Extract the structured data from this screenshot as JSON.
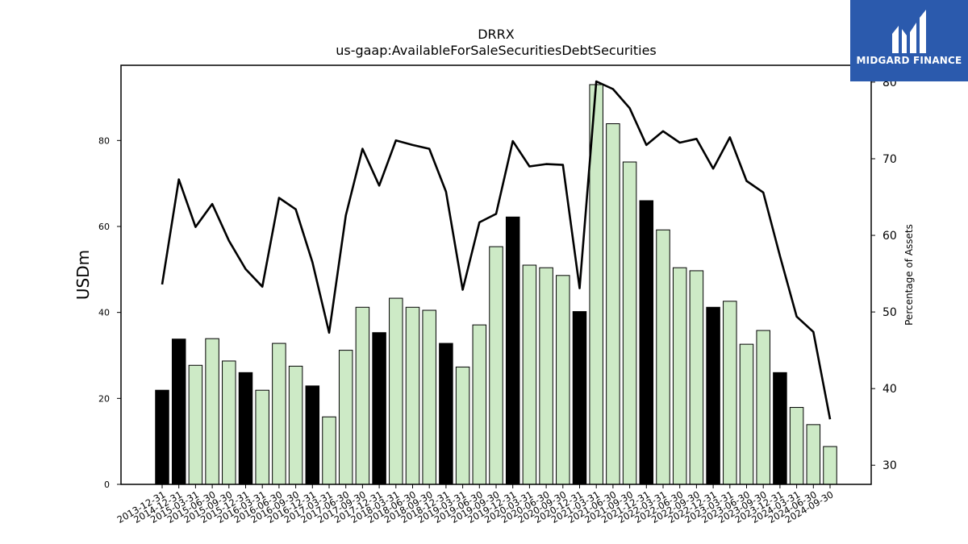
{
  "chart_data": {
    "type": "bar",
    "title": "DRRX",
    "subtitle": "us-gaap:AvailableForSaleSecuritiesDebtSecurities",
    "ylabel": "USDm",
    "y2label": "Percentage of Assets",
    "ylim": [
      0,
      97.5
    ],
    "y2lim": [
      27.5,
      82.2
    ],
    "yticks": [
      0,
      20,
      40,
      60,
      80
    ],
    "y2ticks": [
      30,
      40,
      50,
      60,
      70,
      80
    ],
    "categories": [
      "2013-12-31",
      "2014-12-31",
      "2015-03-31",
      "2015-06-30",
      "2015-09-30",
      "2015-12-31",
      "2016-03-31",
      "2016-06-30",
      "2016-09-30",
      "2016-12-31",
      "2017-03-31",
      "2017-06-30",
      "2017-09-30",
      "2017-12-31",
      "2018-03-31",
      "2018-06-30",
      "2018-09-30",
      "2018-12-31",
      "2019-03-31",
      "2019-06-30",
      "2019-09-30",
      "2019-12-31",
      "2020-03-31",
      "2020-06-30",
      "2020-09-30",
      "2020-12-31",
      "2021-03-31",
      "2021-06-30",
      "2021-09-30",
      "2021-12-31",
      "2022-03-31",
      "2022-06-30",
      "2022-09-30",
      "2022-12-31",
      "2023-03-31",
      "2023-06-30",
      "2023-09-30",
      "2023-12-31",
      "2024-03-31",
      "2024-06-30",
      "2024-09-30"
    ],
    "series": [
      {
        "type": "bar",
        "values": [
          21.9,
          33.8,
          27.7,
          33.9,
          28.7,
          26.0,
          21.9,
          32.8,
          27.5,
          22.9,
          15.7,
          31.2,
          41.2,
          35.3,
          43.3,
          41.2,
          40.5,
          32.8,
          27.3,
          37.1,
          55.3,
          62.2,
          51.0,
          50.4,
          48.6,
          40.2,
          93.0,
          83.9,
          75.0,
          66.0,
          59.2,
          50.4,
          49.7,
          41.2,
          42.6,
          32.6,
          35.8,
          26.0,
          17.9,
          13.9,
          8.8
        ]
      },
      {
        "type": "line",
        "axis": "right",
        "values": [
          53.6,
          67.3,
          61.1,
          64.1,
          59.3,
          55.6,
          53.3,
          64.9,
          63.4,
          56.5,
          47.3,
          62.6,
          71.3,
          66.5,
          72.4,
          71.8,
          71.3,
          65.7,
          52.9,
          61.7,
          62.8,
          72.3,
          69.0,
          69.3,
          69.2,
          53.1,
          80.1,
          79.1,
          76.6,
          71.8,
          73.6,
          72.1,
          72.6,
          68.7,
          72.8,
          67.1,
          65.6,
          57.3,
          49.4,
          47.4,
          36.0
        ]
      }
    ],
    "bar_colors": {
      "highlight": "#000000",
      "normal": "#cdeac6",
      "edge": "#000000"
    },
    "highlight_categories": [
      "2013-12-31",
      "2014-12-31",
      "2015-12-31",
      "2016-12-31",
      "2017-12-31",
      "2018-12-31",
      "2019-12-31",
      "2020-12-31",
      "2021-12-31",
      "2022-12-31",
      "2023-12-31"
    ],
    "line_color": "#000000",
    "grid": false,
    "legend": "none"
  },
  "logo": {
    "text": "MIDGARD FINANCE",
    "background": "#2b5aad"
  }
}
